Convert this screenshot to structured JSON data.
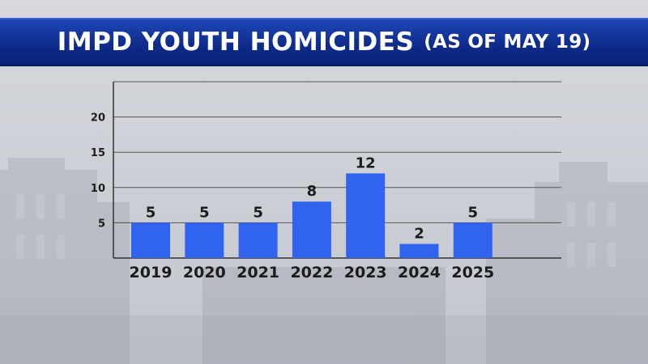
{
  "header": {
    "title": "IMPD YOUTH HOMICIDES",
    "subtitle": "(AS OF MAY 19)"
  },
  "colors": {
    "title_bar": "#0e2c8c",
    "bar": "#2f63f0",
    "axis": "#333333",
    "grid": "#555555",
    "text": "#1c1c1c"
  },
  "chart_data": {
    "type": "bar",
    "categories": [
      "2019",
      "2020",
      "2021",
      "2022",
      "2023",
      "2024",
      "2025"
    ],
    "values": [
      5,
      5,
      5,
      8,
      12,
      2,
      5
    ],
    "data_labels": [
      "5",
      "5",
      "5",
      "8",
      "12",
      "2",
      "5"
    ],
    "yticks": [
      "5",
      "10",
      "15",
      "20"
    ],
    "ylim": [
      0,
      25
    ],
    "grid": true,
    "legend": "none"
  }
}
